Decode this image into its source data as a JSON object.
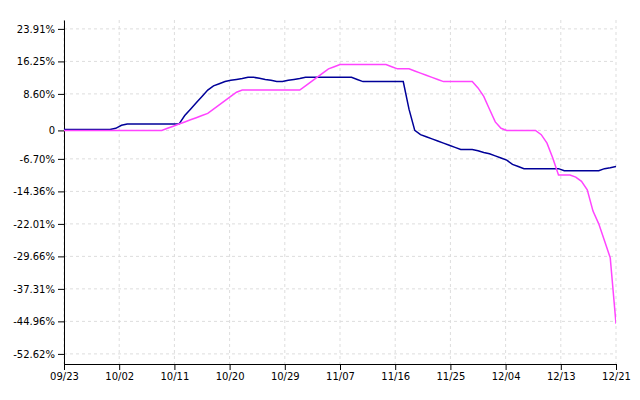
{
  "chart_data": {
    "type": "line",
    "xlim": [
      0,
      1
    ],
    "xticks": [
      {
        "value": 0,
        "label": "09/23"
      },
      {
        "value": 0.1,
        "label": "10/02"
      },
      {
        "value": 0.2,
        "label": "10/11"
      },
      {
        "value": 0.3,
        "label": "10/20"
      },
      {
        "value": 0.4,
        "label": "10/29"
      },
      {
        "value": 0.5,
        "label": "11/07"
      },
      {
        "value": 0.6,
        "label": "11/16"
      },
      {
        "value": 0.7,
        "label": "11/25"
      },
      {
        "value": 0.8,
        "label": "12/04"
      },
      {
        "value": 0.9,
        "label": "12/13"
      },
      {
        "value": 1,
        "label": "12/21"
      }
    ],
    "ylim": [
      -55,
      26
    ],
    "yticks": [
      {
        "value": 23.91,
        "label": "23.91%"
      },
      {
        "value": 16.25,
        "label": "16.25%"
      },
      {
        "value": 8.6,
        "label": "8.60%"
      },
      0,
      {
        "value": -6.7,
        "label": "-6.70%"
      },
      {
        "value": -14.36,
        "label": "-14.36%"
      },
      {
        "value": -22.01,
        "label": "-22.01%"
      },
      {
        "value": -29.66,
        "label": "-29.66%"
      },
      {
        "value": -37.31,
        "label": "-37.31%"
      },
      {
        "value": -44.96,
        "label": "-44.96%"
      },
      {
        "value": -52.62,
        "label": "-52.62%"
      }
    ],
    "grid": true,
    "series": [
      {
        "color": "#000099",
        "values": [
          0.2,
          0.2,
          0.2,
          0.2,
          0.2,
          0.2,
          0.2,
          0.2,
          0.2,
          0.5,
          1.2,
          1.5,
          1.5,
          1.5,
          1.5,
          1.5,
          1.5,
          1.5,
          1.5,
          1.5,
          1.5,
          3.5,
          5.0,
          6.5,
          8.0,
          9.5,
          10.5,
          11.0,
          11.5,
          11.8,
          12.0,
          12.2,
          12.5,
          12.5,
          12.3,
          12.0,
          11.8,
          11.5,
          11.5,
          11.8,
          12.0,
          12.2,
          12.5,
          12.5,
          12.5,
          12.5,
          12.5,
          12.5,
          12.5,
          12.5,
          12.5,
          12.0,
          11.5,
          11.5,
          11.5,
          11.5,
          11.5,
          11.5,
          11.5,
          11.5,
          5.0,
          0.0,
          -1.0,
          -1.5,
          -2.0,
          -2.5,
          -3.0,
          -3.5,
          -4.0,
          -4.5,
          -4.5,
          -4.5,
          -4.8,
          -5.2,
          -5.5,
          -6.0,
          -6.5,
          -7.0,
          -8.0,
          -8.5,
          -9.0,
          -9.0,
          -9.0,
          -9.0,
          -9.0,
          -9.0,
          -9.0,
          -9.5,
          -9.5,
          -9.5,
          -9.5,
          -9.5,
          -9.5,
          -9.5,
          -9.0,
          -8.8,
          -8.5
        ]
      },
      {
        "color": "#ff44ff",
        "values": [
          0.0,
          0.0,
          0.0,
          0.0,
          0.0,
          0.0,
          0.0,
          0.0,
          0.0,
          0.0,
          0.0,
          0.0,
          0.0,
          0.0,
          0.0,
          0.0,
          0.0,
          0.0,
          0.5,
          1.0,
          1.5,
          2.0,
          2.5,
          3.0,
          3.5,
          4.0,
          5.0,
          6.0,
          7.0,
          8.0,
          9.0,
          9.5,
          9.5,
          9.5,
          9.5,
          9.5,
          9.5,
          9.5,
          9.5,
          9.5,
          9.5,
          9.5,
          10.5,
          11.5,
          12.5,
          13.5,
          14.5,
          15.0,
          15.5,
          15.5,
          15.5,
          15.5,
          15.5,
          15.5,
          15.5,
          15.5,
          15.5,
          15.0,
          14.5,
          14.5,
          14.5,
          14.0,
          13.5,
          13.0,
          12.5,
          12.0,
          11.5,
          11.5,
          11.5,
          11.5,
          11.5,
          11.5,
          10.0,
          8.0,
          5.0,
          2.0,
          0.5,
          0.0,
          0.0,
          0.0,
          0.0,
          0.0,
          0.0,
          -1.0,
          -3.0,
          -6.5,
          -10.5,
          -10.5,
          -10.5,
          -11.0,
          -12.0,
          -14.0,
          -19.0,
          -22.0,
          -26.0,
          -30.0,
          -45.5
        ]
      }
    ]
  }
}
